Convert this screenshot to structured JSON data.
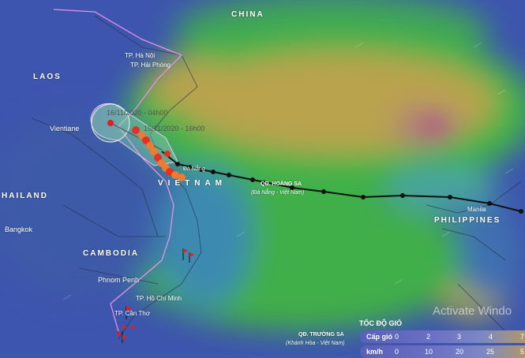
{
  "labels": {
    "china": "CHINA",
    "laos": "LAOS",
    "thailand": "HAILAND",
    "cambodia": "CAMBODIA",
    "vietnam": "VIETNAM",
    "philippines": "PHILIPPINES",
    "hanoi": "TP. Hà Nội",
    "haiphong": "TP. Hải Phòng",
    "vientiane": "Vientiane",
    "bangkok": "Bangkok",
    "phnom_penh": "Phnom Penh",
    "hcm": "TP. Hồ Chí Minh",
    "cantho": "TP. Cần Thơ",
    "manila": "Manila",
    "danang": "Đà Nẵng",
    "hoangsa": "QĐ. HOÀNG SA",
    "hoangsa_sub": "(Đà Nẵng - Việt Nam)",
    "truongsa": "QĐ. TRƯỜNG SA",
    "truongsa_sub": "(Khánh Hòa - Việt Nam)"
  },
  "storm": {
    "forecast_1": "16/11/2020 - 04h00",
    "forecast_2": "15/11/2020 - 16h00",
    "center_symbol": "L"
  },
  "legend": {
    "title": "TỐC ĐỘ GIÓ",
    "row1_label": "Cấp gió",
    "row1_values": [
      "0",
      "2",
      "3",
      "4",
      "7"
    ],
    "row2_label": "km/h",
    "row2_values": [
      "0",
      "10",
      "20",
      "25",
      "5"
    ]
  },
  "watermark": "Activate Windo",
  "colors": {
    "low_wind": "#3f56b0",
    "mid_wind": "#3fae4a",
    "high_wind": "#c8a050",
    "peak_wind": "#b06080",
    "track": "#111111",
    "border": "#e890e8"
  }
}
